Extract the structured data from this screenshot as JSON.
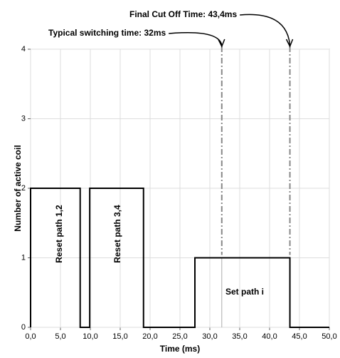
{
  "chart_data": {
    "type": "line",
    "x_label": "Time (ms)",
    "y_label": "Number of active coil",
    "x": [
      0,
      0,
      8.3,
      8.3,
      9.9,
      9.9,
      18.9,
      18.9,
      27.5,
      27.5,
      43.4,
      43.4,
      50
    ],
    "series": [
      {
        "color": "#000000",
        "values": [
          0,
          2,
          2,
          0,
          0,
          2,
          2,
          0,
          0,
          1,
          1,
          0,
          0
        ]
      }
    ],
    "xlim": [
      0,
      50
    ],
    "xticks": [
      {
        "value": 0,
        "label": "0,0"
      },
      {
        "value": 5,
        "label": "5,0"
      },
      {
        "value": 10,
        "label": "10,0"
      },
      {
        "value": 15,
        "label": "15,0"
      },
      {
        "value": 20,
        "label": "20,0"
      },
      {
        "value": 25,
        "label": "25,0"
      },
      {
        "value": 30,
        "label": "30,0"
      },
      {
        "value": 35,
        "label": "35,0"
      },
      {
        "value": 40,
        "label": "40,0"
      },
      {
        "value": 45,
        "label": "45,0"
      },
      {
        "value": 50,
        "label": "50,0"
      }
    ],
    "ylim": [
      0,
      4
    ],
    "yticks": [
      0,
      1,
      2,
      3,
      4
    ],
    "grid": true,
    "markers": [
      {
        "x": 32,
        "label": "Typical switching time: 32ms"
      },
      {
        "x": 43.4,
        "label": "Final Cut Off Time: 43,4ms"
      }
    ],
    "region_labels": [
      "Reset path 1,2",
      "Reset path 3,4",
      "Set path i"
    ]
  }
}
